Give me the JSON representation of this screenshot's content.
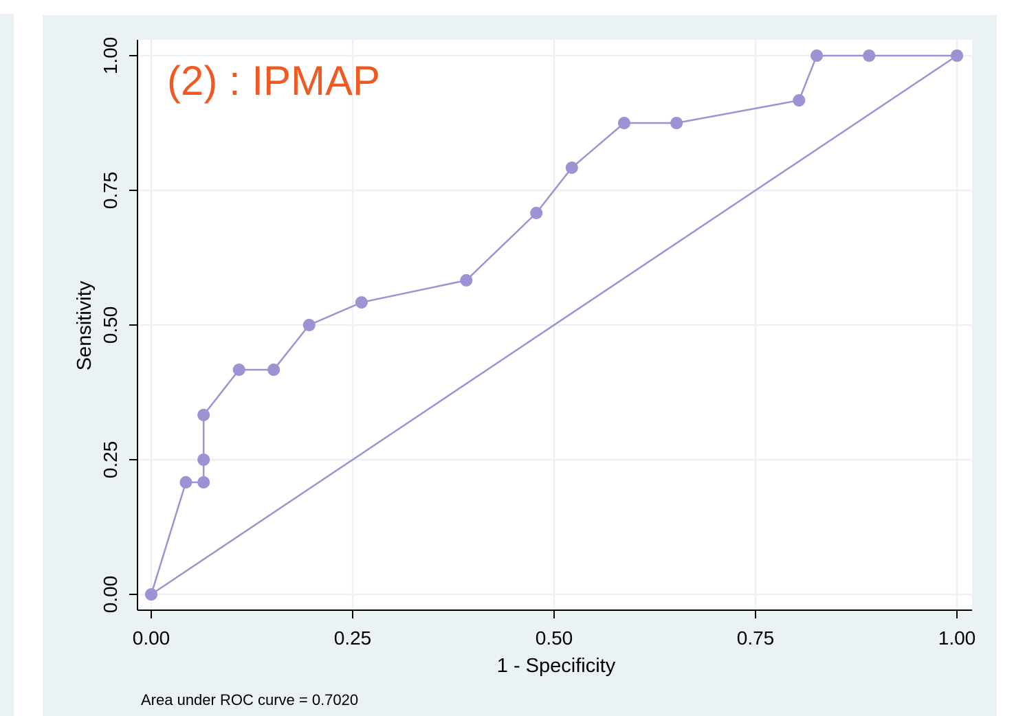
{
  "colors": {
    "background": "#eaf2f3",
    "plot_background": "#ffffff",
    "grid": "#eaf2f3",
    "series": "#9b93d3",
    "annotation": "#f05a22"
  },
  "chart_data": {
    "type": "line",
    "annotation": "(2) : IPMAP",
    "xlabel": "1 - Specificity",
    "ylabel": "Sensitivity",
    "xlim": [
      0,
      1
    ],
    "ylim": [
      0,
      1
    ],
    "x_ticks": [
      "0.00",
      "0.25",
      "0.50",
      "0.75",
      "1.00"
    ],
    "y_ticks": [
      "0.00",
      "0.25",
      "0.50",
      "0.75",
      "1.00"
    ],
    "grid": true,
    "note": "Area under ROC curve = 0.7020",
    "series": [
      {
        "type": "line+markers",
        "x": [
          0.0,
          0.043,
          0.065,
          0.065,
          0.065,
          0.109,
          0.152,
          0.196,
          0.261,
          0.391,
          0.478,
          0.522,
          0.587,
          0.652,
          0.804,
          0.826,
          0.891,
          1.0
        ],
        "y": [
          0.0,
          0.208,
          0.208,
          0.25,
          0.333,
          0.417,
          0.417,
          0.5,
          0.542,
          0.583,
          0.708,
          0.792,
          0.875,
          0.875,
          0.917,
          1.0,
          1.0,
          1.0
        ]
      },
      {
        "type": "line",
        "x": [
          0,
          1
        ],
        "y": [
          0,
          1
        ]
      }
    ]
  }
}
